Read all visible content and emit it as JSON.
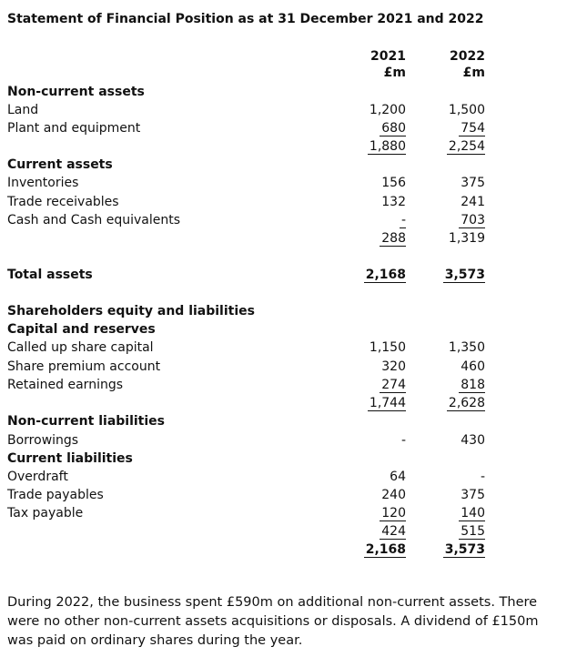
{
  "title": "Statement of Financial Position as at 31 December 2021 and 2022",
  "columns": [
    {
      "year": "2021",
      "unit": "£m"
    },
    {
      "year": "2022",
      "unit": "£m"
    }
  ],
  "rows": [
    {
      "label": "Non-current assets"
    },
    {
      "label": "Land",
      "values": [
        "1,200",
        "1,500"
      ]
    },
    {
      "label": "Plant and equipment",
      "values": [
        "680",
        "754"
      ]
    },
    {
      "values": [
        "1,880",
        "2,254"
      ]
    },
    {
      "label": "Current assets"
    },
    {
      "label": "Inventories",
      "values": [
        "156",
        "375"
      ]
    },
    {
      "label": "Trade receivables",
      "values": [
        "132",
        "241"
      ]
    },
    {
      "label": "Cash and Cash equivalents",
      "values": [
        "-",
        "703"
      ]
    },
    {
      "values": [
        "288",
        "1,319"
      ]
    },
    {
      "label": "Total assets",
      "values": [
        "2,168",
        "3,573"
      ]
    },
    {
      "label": "Shareholders equity and liabilities"
    },
    {
      "label": "Capital and reserves"
    },
    {
      "label": "Called up share capital",
      "values": [
        "1,150",
        "1,350"
      ]
    },
    {
      "label": "Share premium account",
      "values": [
        "320",
        "460"
      ]
    },
    {
      "label": "Retained earnings",
      "values": [
        "274",
        "818"
      ]
    },
    {
      "values": [
        "1,744",
        "2,628"
      ]
    },
    {
      "label": "Non-current liabilities"
    },
    {
      "label": "Borrowings",
      "values": [
        "-",
        "430"
      ]
    },
    {
      "label": "Current liabilities"
    },
    {
      "label": "Overdraft",
      "values": [
        "64",
        "-"
      ]
    },
    {
      "label": "Trade payables",
      "values": [
        "240",
        "375"
      ]
    },
    {
      "label": "Tax payable",
      "values": [
        "120",
        "140"
      ]
    },
    {
      "values": [
        "424",
        "515"
      ]
    },
    {
      "values": [
        "2,168",
        "3,573"
      ]
    }
  ],
  "note": "During 2022, the business spent £590m on additional non-current assets. There were no other non-current assets acquisitions or disposals. A dividend of £150m was paid on ordinary shares during the year."
}
